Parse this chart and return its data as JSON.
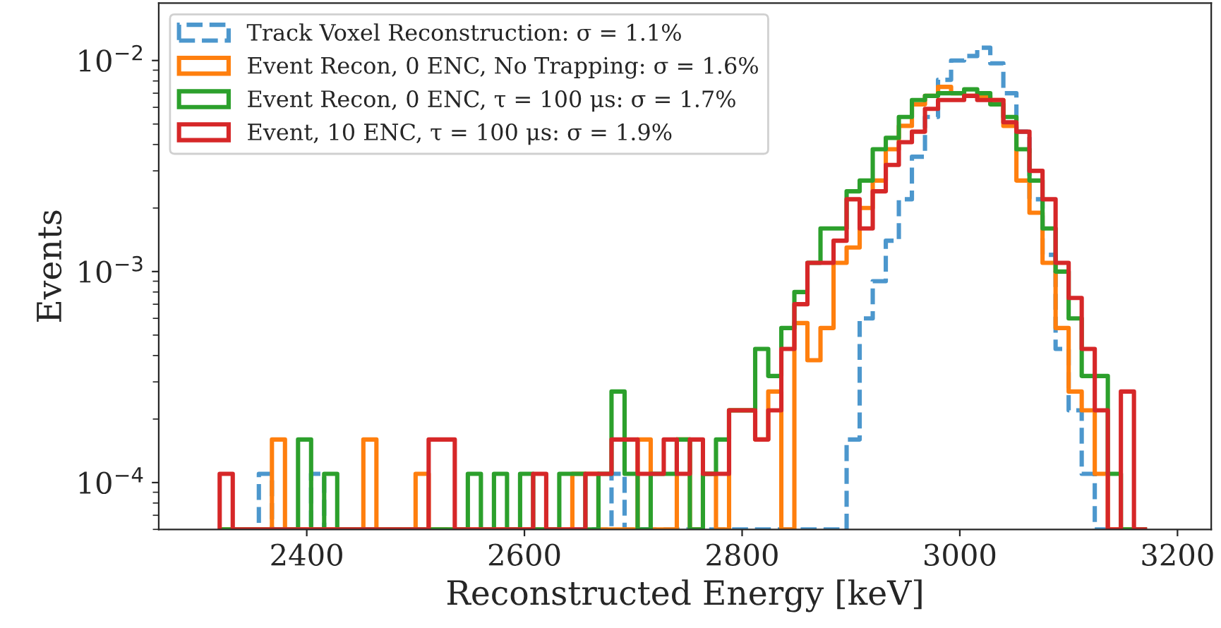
{
  "chart_data": {
    "type": "histogram",
    "xlabel": "Reconstructed Energy [keV]",
    "ylabel": "Events",
    "log": "y",
    "legend": "top left",
    "grid": false,
    "xlim": [
      2264,
      3231
    ],
    "xticks": [
      2400,
      2600,
      2800,
      3000,
      3200
    ],
    "ylim": [
      6e-05,
      0.0187
    ],
    "yticks": [
      {
        "value": 0.0001,
        "label": "10$^{−4}$"
      },
      {
        "value": 0.001,
        "label": "10$^{−3}$"
      },
      {
        "value": 0.01,
        "label": "10$^{−2}$"
      }
    ],
    "bins": [
      2320,
      2332,
      2344,
      2356,
      2368,
      2380,
      2392,
      2404,
      2416,
      2428,
      2440,
      2452,
      2464,
      2476,
      2488,
      2500,
      2512,
      2524,
      2536,
      2548,
      2560,
      2572,
      2584,
      2596,
      2608,
      2620,
      2632,
      2644,
      2656,
      2668,
      2680,
      2692,
      2704,
      2716,
      2728,
      2740,
      2752,
      2764,
      2776,
      2788,
      2800,
      2812,
      2824,
      2836,
      2848,
      2860,
      2872,
      2884,
      2896,
      2908,
      2920,
      2932,
      2944,
      2956,
      2968,
      2980,
      2992,
      3004,
      3016,
      3028,
      3040,
      3052,
      3064,
      3076,
      3088,
      3100,
      3112,
      3124,
      3136,
      3148,
      3160,
      3172
    ],
    "series": [
      {
        "name": "Track Voxel Reconstruction: σ = 1.1%",
        "color": "#4c97cd",
        "line_style": "dashed",
        "values": [
          null,
          null,
          null,
          0.00011,
          null,
          null,
          null,
          0.00011,
          null,
          null,
          null,
          null,
          null,
          null,
          null,
          null,
          null,
          null,
          null,
          null,
          null,
          null,
          null,
          null,
          null,
          null,
          null,
          null,
          null,
          null,
          0.00011,
          null,
          null,
          null,
          null,
          null,
          null,
          null,
          null,
          null,
          null,
          null,
          null,
          null,
          null,
          null,
          null,
          null,
          0.00016,
          0.0006,
          0.0009,
          0.0014,
          0.0022,
          0.0035,
          0.0054,
          0.0081,
          0.01,
          0.0105,
          0.0115,
          0.0097,
          0.007,
          0.0046,
          0.0022,
          0.0012,
          0.00043,
          0.00022,
          0.00011,
          null,
          null,
          null,
          null
        ]
      },
      {
        "name": "Event Recon, 0 ENC, No Trapping: σ = 1.6%",
        "color": "#ff7f0e",
        "line_style": "solid",
        "values": [
          null,
          null,
          null,
          null,
          0.00016,
          null,
          null,
          null,
          null,
          null,
          null,
          0.00016,
          null,
          null,
          null,
          0.00011,
          null,
          null,
          null,
          null,
          null,
          null,
          null,
          null,
          null,
          null,
          null,
          0.00011,
          0.00011,
          null,
          null,
          null,
          0.00016,
          null,
          null,
          0.00016,
          null,
          0.00011,
          null,
          0.00022,
          0.00022,
          0.00016,
          0.00027,
          null,
          0.00057,
          0.00038,
          0.00054,
          0.0011,
          0.0013,
          0.002,
          0.0027,
          0.0038,
          0.0049,
          0.0062,
          0.0068,
          0.0075,
          0.007,
          0.0068,
          0.0068,
          0.0065,
          0.0049,
          0.0027,
          0.0019,
          0.0011,
          0.00054,
          0.00027,
          0.00022,
          0.00011,
          null,
          null,
          null
        ]
      },
      {
        "name": "Event Recon, 0 ENC, τ = 100 μs: σ = 1.7%",
        "color": "#2ca02c",
        "line_style": "solid",
        "values": [
          null,
          null,
          null,
          null,
          null,
          null,
          0.00016,
          null,
          0.00011,
          null,
          null,
          null,
          null,
          null,
          null,
          null,
          null,
          null,
          null,
          0.00011,
          null,
          0.00011,
          null,
          0.00011,
          null,
          null,
          0.00011,
          0.00011,
          null,
          0.00011,
          0.00027,
          0.00011,
          null,
          0.00011,
          0.00011,
          0.00016,
          null,
          0.00011,
          0.00016,
          0.00022,
          0.00022,
          0.00043,
          0.00032,
          0.00054,
          0.0008,
          0.0011,
          0.0016,
          0.0016,
          0.0024,
          0.0027,
          0.0038,
          0.0043,
          0.0054,
          0.0065,
          0.0068,
          0.007,
          0.007,
          0.0073,
          0.007,
          0.0062,
          0.0054,
          0.0038,
          0.0027,
          0.0016,
          0.001,
          0.0006,
          0.00032,
          0.00032,
          0.00011,
          null,
          null
        ]
      },
      {
        "name": "Event, 10 ENC, τ = 100 μs: σ = 1.9%",
        "color": "#d62728",
        "line_style": "solid",
        "values": [
          0.00011,
          null,
          null,
          null,
          null,
          null,
          null,
          null,
          null,
          null,
          null,
          null,
          null,
          null,
          null,
          null,
          0.00016,
          0.00016,
          null,
          null,
          null,
          null,
          null,
          null,
          0.00011,
          null,
          null,
          null,
          0.00011,
          0.00011,
          0.00016,
          0.00016,
          0.00011,
          0.00011,
          0.00016,
          0.00011,
          0.00016,
          0.00011,
          0.00011,
          0.00022,
          0.00022,
          0.00016,
          0.00022,
          0.00043,
          0.0007,
          0.0011,
          0.0011,
          0.0014,
          0.0022,
          0.0016,
          0.0024,
          0.0032,
          0.0041,
          0.0046,
          0.0059,
          0.0065,
          0.0065,
          0.0068,
          0.0065,
          0.0065,
          0.0051,
          0.0046,
          0.003,
          0.0022,
          0.0011,
          0.00075,
          0.00043,
          0.00022,
          null,
          0.00027,
          null
        ]
      }
    ]
  }
}
